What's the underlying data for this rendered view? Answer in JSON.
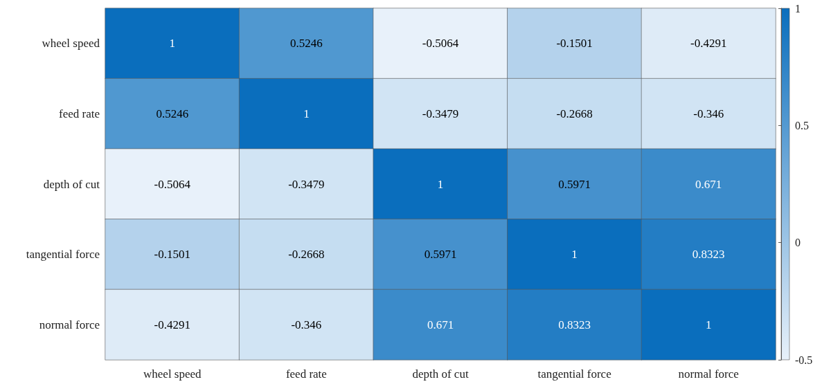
{
  "chart_data": {
    "type": "heatmap",
    "categories": [
      "wheel speed",
      "feed rate",
      "depth of cut",
      "tangential force",
      "normal force"
    ],
    "y_categories": [
      "wheel speed",
      "feed rate",
      "depth of cut",
      "tangential force",
      "normal force"
    ],
    "cells": [
      [
        1,
        0.5246,
        -0.5064,
        -0.1501,
        -0.4291
      ],
      [
        0.5246,
        1,
        -0.3479,
        -0.2668,
        -0.346
      ],
      [
        -0.5064,
        -0.3479,
        1,
        0.5971,
        0.671
      ],
      [
        -0.1501,
        -0.2668,
        0.5971,
        1,
        0.8323
      ],
      [
        -0.4291,
        -0.346,
        0.671,
        0.8323,
        1
      ]
    ],
    "data_labels": true,
    "clim": [
      -0.5,
      1
    ],
    "cticks": [
      -0.5,
      0,
      0.5,
      1
    ]
  }
}
